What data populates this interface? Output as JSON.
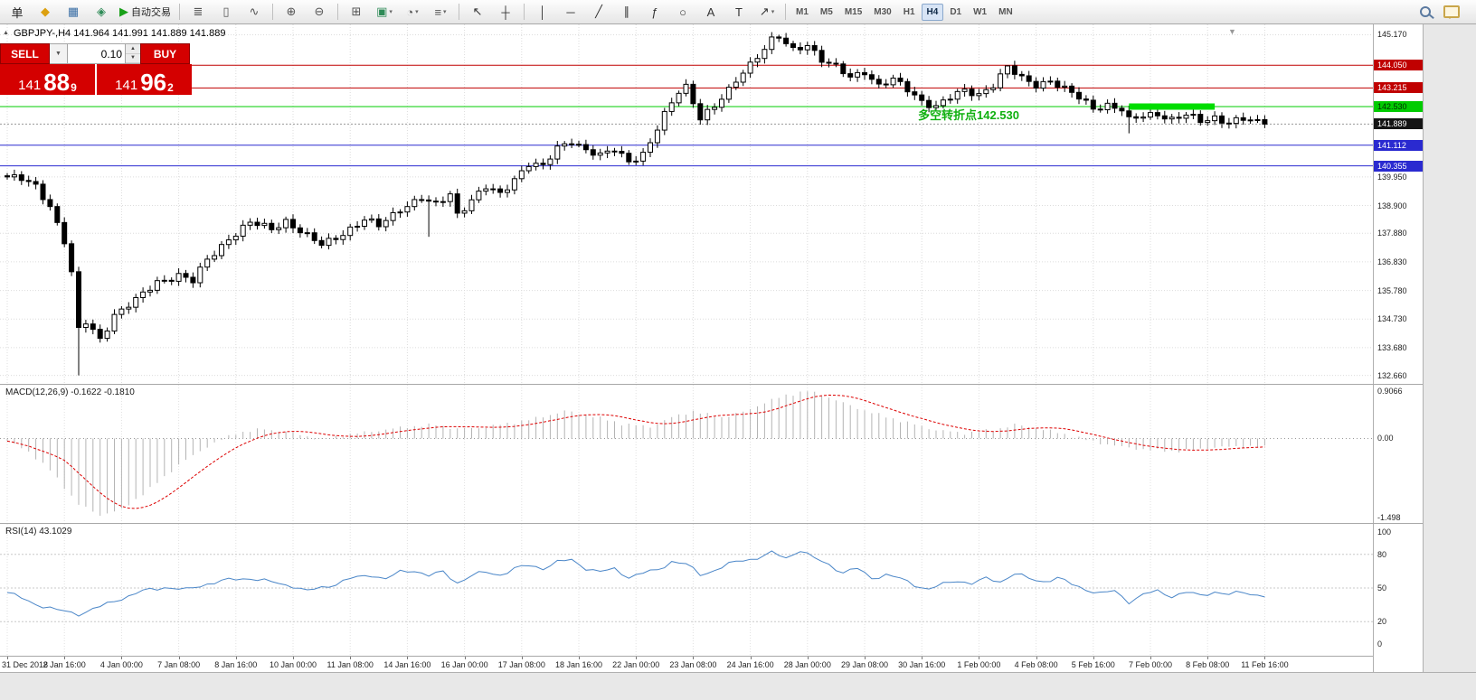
{
  "toolbar": {
    "buttons": [
      {
        "name": "new-order-button",
        "glyph": "单",
        "color": "#222"
      },
      {
        "name": "order-icon",
        "glyph": "◆",
        "color": "#dca010"
      },
      {
        "name": "market-watch-icon",
        "glyph": "▦",
        "color": "#3a6ea5"
      },
      {
        "name": "navigator-icon",
        "glyph": "◈",
        "color": "#2e8b57"
      },
      {
        "name": "autotrading-button",
        "glyph": "▶",
        "color": "#18a018",
        "label": "自动交易"
      },
      {
        "sep": true
      },
      {
        "name": "bar-chart-icon",
        "glyph": "≣",
        "color": "#555"
      },
      {
        "name": "candlestick-chart-icon",
        "glyph": "▯",
        "color": "#555"
      },
      {
        "name": "line-chart-icon",
        "glyph": "∿",
        "color": "#555"
      },
      {
        "sep": true
      },
      {
        "name": "zoom-in-icon",
        "glyph": "⊕",
        "color": "#555"
      },
      {
        "name": "zoom-out-icon",
        "glyph": "⊖",
        "color": "#555"
      },
      {
        "sep": true
      },
      {
        "name": "tile-windows-icon",
        "glyph": "⊞",
        "color": "#555"
      },
      {
        "name": "new-chart-icon",
        "glyph": "▣",
        "color": "#2e8b57",
        "caret": true
      },
      {
        "name": "period-icon",
        "glyph": "◔",
        "color": "#555",
        "caret": true
      },
      {
        "name": "template-icon",
        "glyph": "≡",
        "color": "#555",
        "caret": true
      },
      {
        "sep": true
      },
      {
        "name": "cursor-icon",
        "glyph": "↖",
        "color": "#333"
      },
      {
        "name": "crosshair-icon",
        "glyph": "┼",
        "color": "#333"
      },
      {
        "sep": true
      },
      {
        "name": "vertical-line-icon",
        "glyph": "│",
        "color": "#333"
      },
      {
        "name": "horizontal-line-icon",
        "glyph": "─",
        "color": "#333"
      },
      {
        "name": "trendline-icon",
        "glyph": "╱",
        "color": "#333"
      },
      {
        "name": "channel-icon",
        "glyph": "∥",
        "color": "#333"
      },
      {
        "name": "fibonacci-icon",
        "glyph": "ƒ",
        "color": "#333"
      },
      {
        "name": "shapes-icon",
        "glyph": "○",
        "color": "#333"
      },
      {
        "name": "text-icon",
        "glyph": "A",
        "color": "#333"
      },
      {
        "name": "label-icon",
        "glyph": "T",
        "color": "#333"
      },
      {
        "name": "arrows-icon",
        "glyph": "↗",
        "color": "#333",
        "caret": true
      },
      {
        "sep": true
      }
    ],
    "timeframes": {
      "items": [
        "M1",
        "M5",
        "M15",
        "M30",
        "H1",
        "H4",
        "D1",
        "W1",
        "MN"
      ],
      "active": "H4"
    }
  },
  "trade_panel": {
    "sell_label": "SELL",
    "buy_label": "BUY",
    "lot_size": "0.10",
    "lot_dropdown_glyph": "▼",
    "spin_up_glyph": "▲",
    "spin_down_glyph": "▼",
    "sell_price": {
      "main": "141",
      "pips": "88",
      "frac": "9"
    },
    "buy_price": {
      "main": "141",
      "pips": "96",
      "frac": "2"
    }
  },
  "chart": {
    "symbol_title": "GBPJPY-,H4 141.964 141.991 141.889 141.889",
    "panel_toggle_glyph": "▲",
    "shift_marker_glyph": "▼",
    "annotation": {
      "text": "多空转折点142.530",
      "color": "#10b010"
    },
    "price_scale": {
      "plain_labels": [
        145.17,
        139.95,
        138.9,
        137.88,
        136.83,
        135.78,
        134.73,
        133.68,
        132.66
      ],
      "tags": [
        {
          "value": 144.05,
          "text": "144.050",
          "bg": "#c00000",
          "fg": "#ffffff"
        },
        {
          "value": 143.215,
          "text": "143.215",
          "bg": "#c00000",
          "fg": "#ffffff"
        },
        {
          "value": 142.53,
          "text": "142.530",
          "bg": "#00cc00",
          "fg": "#002a00"
        },
        {
          "value": 141.889,
          "text": "141.889",
          "bg": "#151515",
          "fg": "#ffffff"
        },
        {
          "value": 141.112,
          "text": "141.112",
          "bg": "#2a2ad0",
          "fg": "#ffffff"
        },
        {
          "value": 140.355,
          "text": "140.355",
          "bg": "#2a2ad0",
          "fg": "#ffffff"
        }
      ]
    }
  },
  "chart_data": {
    "type": "candlestick",
    "symbol": "GBPJPY-",
    "timeframe": "H4",
    "ohlc_current": {
      "open": 141.964,
      "high": 141.991,
      "low": 141.889,
      "close": 141.889
    },
    "y_axis": {
      "min": 132.35,
      "max": 145.55
    },
    "x_labels": [
      "31 Dec 2018",
      "2 Jan 16:00",
      "4 Jan 00:00",
      "7 Jan 08:00",
      "8 Jan 16:00",
      "10 Jan 00:00",
      "11 Jan 08:00",
      "14 Jan 16:00",
      "16 Jan 00:00",
      "17 Jan 08:00",
      "18 Jan 16:00",
      "22 Jan 00:00",
      "23 Jan 08:00",
      "24 Jan 16:00",
      "28 Jan 00:00",
      "29 Jan 08:00",
      "30 Jan 16:00",
      "1 Feb 00:00",
      "4 Feb 08:00",
      "5 Feb 16:00",
      "7 Feb 00:00",
      "8 Feb 08:00",
      "11 Feb 16:00"
    ],
    "candles_per_label": 8,
    "candle_count": 177,
    "price_anchors": [
      [
        0,
        139.95
      ],
      [
        2,
        139.85
      ],
      [
        4,
        139.6
      ],
      [
        6,
        138.9
      ],
      [
        8,
        137.6
      ],
      [
        9,
        136.4
      ],
      [
        10,
        134.3
      ],
      [
        11,
        134.6
      ],
      [
        13,
        134.0
      ],
      [
        15,
        134.9
      ],
      [
        18,
        135.4
      ],
      [
        21,
        136.1
      ],
      [
        24,
        136.35
      ],
      [
        26,
        136.1
      ],
      [
        28,
        136.9
      ],
      [
        31,
        137.7
      ],
      [
        34,
        138.25
      ],
      [
        37,
        138.05
      ],
      [
        39,
        138.35
      ],
      [
        42,
        137.75
      ],
      [
        44,
        137.45
      ],
      [
        47,
        137.9
      ],
      [
        50,
        138.35
      ],
      [
        52,
        138.15
      ],
      [
        55,
        138.8
      ],
      [
        58,
        139.15
      ],
      [
        59,
        139.0
      ],
      [
        60,
        138.9
      ],
      [
        62,
        139.35
      ],
      [
        63,
        138.6
      ],
      [
        65,
        139.1
      ],
      [
        67,
        139.55
      ],
      [
        69,
        139.3
      ],
      [
        71,
        139.9
      ],
      [
        73,
        140.45
      ],
      [
        75,
        140.3
      ],
      [
        77,
        141.0
      ],
      [
        79,
        141.3
      ],
      [
        81,
        140.95
      ],
      [
        83,
        140.7
      ],
      [
        85,
        140.95
      ],
      [
        87,
        140.55
      ],
      [
        89,
        140.8
      ],
      [
        90,
        141.2
      ],
      [
        92,
        142.2
      ],
      [
        94,
        143.1
      ],
      [
        95,
        143.3
      ],
      [
        97,
        142.15
      ],
      [
        99,
        142.5
      ],
      [
        101,
        143.1
      ],
      [
        103,
        143.85
      ],
      [
        105,
        144.4
      ],
      [
        107,
        144.95
      ],
      [
        108,
        145.05
      ],
      [
        110,
        144.6
      ],
      [
        112,
        144.85
      ],
      [
        114,
        144.25
      ],
      [
        116,
        143.95
      ],
      [
        118,
        143.6
      ],
      [
        120,
        143.85
      ],
      [
        122,
        143.3
      ],
      [
        124,
        143.5
      ],
      [
        126,
        143.15
      ],
      [
        128,
        142.75
      ],
      [
        130,
        142.55
      ],
      [
        132,
        142.85
      ],
      [
        134,
        143.1
      ],
      [
        136,
        143.0
      ],
      [
        138,
        143.35
      ],
      [
        140,
        143.95
      ],
      [
        142,
        143.55
      ],
      [
        144,
        143.35
      ],
      [
        146,
        143.5
      ],
      [
        148,
        143.15
      ],
      [
        150,
        142.85
      ],
      [
        152,
        142.5
      ],
      [
        154,
        142.6
      ],
      [
        156,
        142.4
      ],
      [
        157,
        142.0
      ],
      [
        159,
        142.2
      ],
      [
        161,
        142.3
      ],
      [
        163,
        142.05
      ],
      [
        165,
        142.2
      ],
      [
        167,
        142.0
      ],
      [
        169,
        142.15
      ],
      [
        171,
        141.95
      ],
      [
        173,
        142.05
      ],
      [
        176,
        141.889
      ]
    ],
    "candle_overrides": {
      "10": {
        "low": 132.66
      },
      "59": {
        "low": 137.75
      },
      "108": {
        "high": 145.17
      },
      "140": {
        "high": 144.05
      },
      "157": {
        "low": 141.55
      },
      "176": {
        "close": 141.889
      }
    },
    "horizontal_lines": [
      {
        "price": 144.05,
        "color": "#c00000"
      },
      {
        "price": 143.215,
        "color": "#c00000"
      },
      {
        "price": 142.53,
        "color": "#00cc00"
      },
      {
        "price": 141.112,
        "color": "#2a2ad0"
      },
      {
        "price": 140.355,
        "color": "#2a2ad0"
      }
    ],
    "bid_line": {
      "price": 141.889,
      "color": "#999999"
    },
    "green_segment": {
      "price": 142.53,
      "from_index": 157,
      "to_index": 169,
      "color": "#00dd00",
      "width": 7
    },
    "indicators": {
      "macd": {
        "title": "MACD(12,26,9) -0.1622 -0.1810",
        "scale_labels": [
          {
            "value": 0.9066,
            "text": "0.9066"
          },
          {
            "value": 0,
            "text": "0.00"
          },
          {
            "value": -1.498,
            "text": "-1.498"
          }
        ],
        "histogram_color": "#b4b4b4",
        "signal_color": "#dd0000",
        "anchors": [
          [
            0,
            -0.05
          ],
          [
            3,
            -0.25
          ],
          [
            6,
            -0.6
          ],
          [
            10,
            -1.25
          ],
          [
            13,
            -1.45
          ],
          [
            16,
            -1.35
          ],
          [
            20,
            -0.95
          ],
          [
            24,
            -0.5
          ],
          [
            28,
            -0.15
          ],
          [
            32,
            0.1
          ],
          [
            36,
            0.18
          ],
          [
            40,
            0.1
          ],
          [
            44,
            -0.02
          ],
          [
            48,
            0.08
          ],
          [
            52,
            0.15
          ],
          [
            56,
            0.22
          ],
          [
            60,
            0.26
          ],
          [
            63,
            0.18
          ],
          [
            66,
            0.2
          ],
          [
            70,
            0.28
          ],
          [
            74,
            0.38
          ],
          [
            78,
            0.52
          ],
          [
            82,
            0.42
          ],
          [
            86,
            0.28
          ],
          [
            90,
            0.22
          ],
          [
            93,
            0.4
          ],
          [
            96,
            0.52
          ],
          [
            98,
            0.45
          ],
          [
            100,
            0.4
          ],
          [
            103,
            0.5
          ],
          [
            106,
            0.68
          ],
          [
            109,
            0.82
          ],
          [
            112,
            0.9
          ],
          [
            115,
            0.78
          ],
          [
            118,
            0.62
          ],
          [
            122,
            0.45
          ],
          [
            126,
            0.3
          ],
          [
            130,
            0.16
          ],
          [
            134,
            0.1
          ],
          [
            138,
            0.16
          ],
          [
            141,
            0.26
          ],
          [
            144,
            0.2
          ],
          [
            148,
            0.08
          ],
          [
            152,
            -0.06
          ],
          [
            156,
            -0.16
          ],
          [
            160,
            -0.22
          ],
          [
            164,
            -0.24
          ],
          [
            168,
            -0.18
          ],
          [
            172,
            -0.15
          ],
          [
            176,
            -0.162
          ]
        ]
      },
      "rsi": {
        "title": "RSI(14) 43.1029",
        "scale_labels": [
          {
            "value": 100,
            "text": "100"
          },
          {
            "value": 80,
            "text": "80"
          },
          {
            "value": 50,
            "text": "50"
          },
          {
            "value": 20,
            "text": "20"
          },
          {
            "value": 0,
            "text": "0"
          }
        ],
        "levels": [
          80,
          50,
          20
        ],
        "line_color": "#4a86c8",
        "anchors": [
          [
            0,
            46
          ],
          [
            3,
            38
          ],
          [
            7,
            30
          ],
          [
            10,
            27
          ],
          [
            13,
            33
          ],
          [
            16,
            41
          ],
          [
            19,
            47
          ],
          [
            22,
            51
          ],
          [
            25,
            48
          ],
          [
            28,
            54
          ],
          [
            31,
            57
          ],
          [
            34,
            59
          ],
          [
            37,
            55
          ],
          [
            40,
            52
          ],
          [
            42,
            47
          ],
          [
            45,
            52
          ],
          [
            48,
            58
          ],
          [
            51,
            62
          ],
          [
            53,
            58
          ],
          [
            55,
            64
          ],
          [
            57,
            66
          ],
          [
            59,
            61
          ],
          [
            61,
            64
          ],
          [
            63,
            55
          ],
          [
            65,
            61
          ],
          [
            67,
            64
          ],
          [
            69,
            62
          ],
          [
            71,
            67
          ],
          [
            73,
            70
          ],
          [
            75,
            68
          ],
          [
            77,
            73
          ],
          [
            79,
            75
          ],
          [
            81,
            68
          ],
          [
            83,
            64
          ],
          [
            85,
            67
          ],
          [
            87,
            60
          ],
          [
            89,
            63
          ],
          [
            91,
            66
          ],
          [
            93,
            74
          ],
          [
            95,
            71
          ],
          [
            97,
            62
          ],
          [
            99,
            66
          ],
          [
            101,
            71
          ],
          [
            103,
            75
          ],
          [
            105,
            77
          ],
          [
            107,
            81
          ],
          [
            109,
            77
          ],
          [
            111,
            84
          ],
          [
            113,
            76
          ],
          [
            115,
            71
          ],
          [
            117,
            64
          ],
          [
            119,
            67
          ],
          [
            121,
            59
          ],
          [
            123,
            62
          ],
          [
            125,
            58
          ],
          [
            127,
            53
          ],
          [
            129,
            49
          ],
          [
            131,
            53
          ],
          [
            133,
            57
          ],
          [
            135,
            54
          ],
          [
            137,
            58
          ],
          [
            139,
            56
          ],
          [
            141,
            63
          ],
          [
            143,
            58
          ],
          [
            145,
            56
          ],
          [
            147,
            59
          ],
          [
            149,
            53
          ],
          [
            151,
            49
          ],
          [
            153,
            45
          ],
          [
            155,
            47
          ],
          [
            157,
            38
          ],
          [
            159,
            44
          ],
          [
            161,
            47
          ],
          [
            163,
            43
          ],
          [
            165,
            46
          ],
          [
            167,
            43
          ],
          [
            169,
            47
          ],
          [
            171,
            44
          ],
          [
            173,
            46
          ],
          [
            176,
            43.1
          ]
        ]
      }
    }
  }
}
